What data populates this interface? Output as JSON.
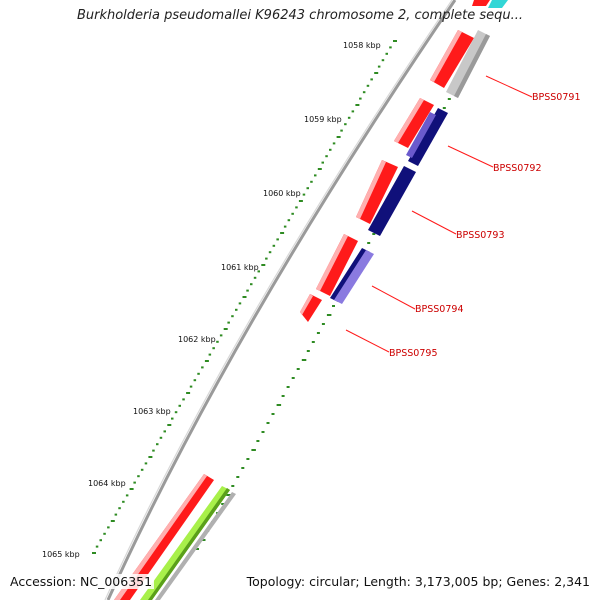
{
  "title": "Burkholderia pseudomallei K96243 chromosome 2, complete sequ...",
  "accession": "Accession: NC_006351",
  "stats": "Topology: circular; Length: 3,173,005 bp; Genes: 2,341",
  "kbp_ticks": [
    "1058 kbp",
    "1059 kbp",
    "1060 kbp",
    "1061 kbp",
    "1062 kbp",
    "1063 kbp",
    "1064 kbp",
    "1065 kbp"
  ],
  "gene_labels": [
    "BPSS0791",
    "BPSS0792",
    "BPSS0793",
    "BPSS0794",
    "BPSS0795"
  ],
  "colors": {
    "cds": "#ff1a1a",
    "gene_label": "#cc0000",
    "backbone": "#8a8a8a",
    "tick_dots": "#2e8b22",
    "navy": "#10107a",
    "slate_blue": "#6a5acd",
    "gray_feature": "#c4c4c4",
    "lime": "#a8f04a",
    "cyan": "#33d6d6"
  }
}
